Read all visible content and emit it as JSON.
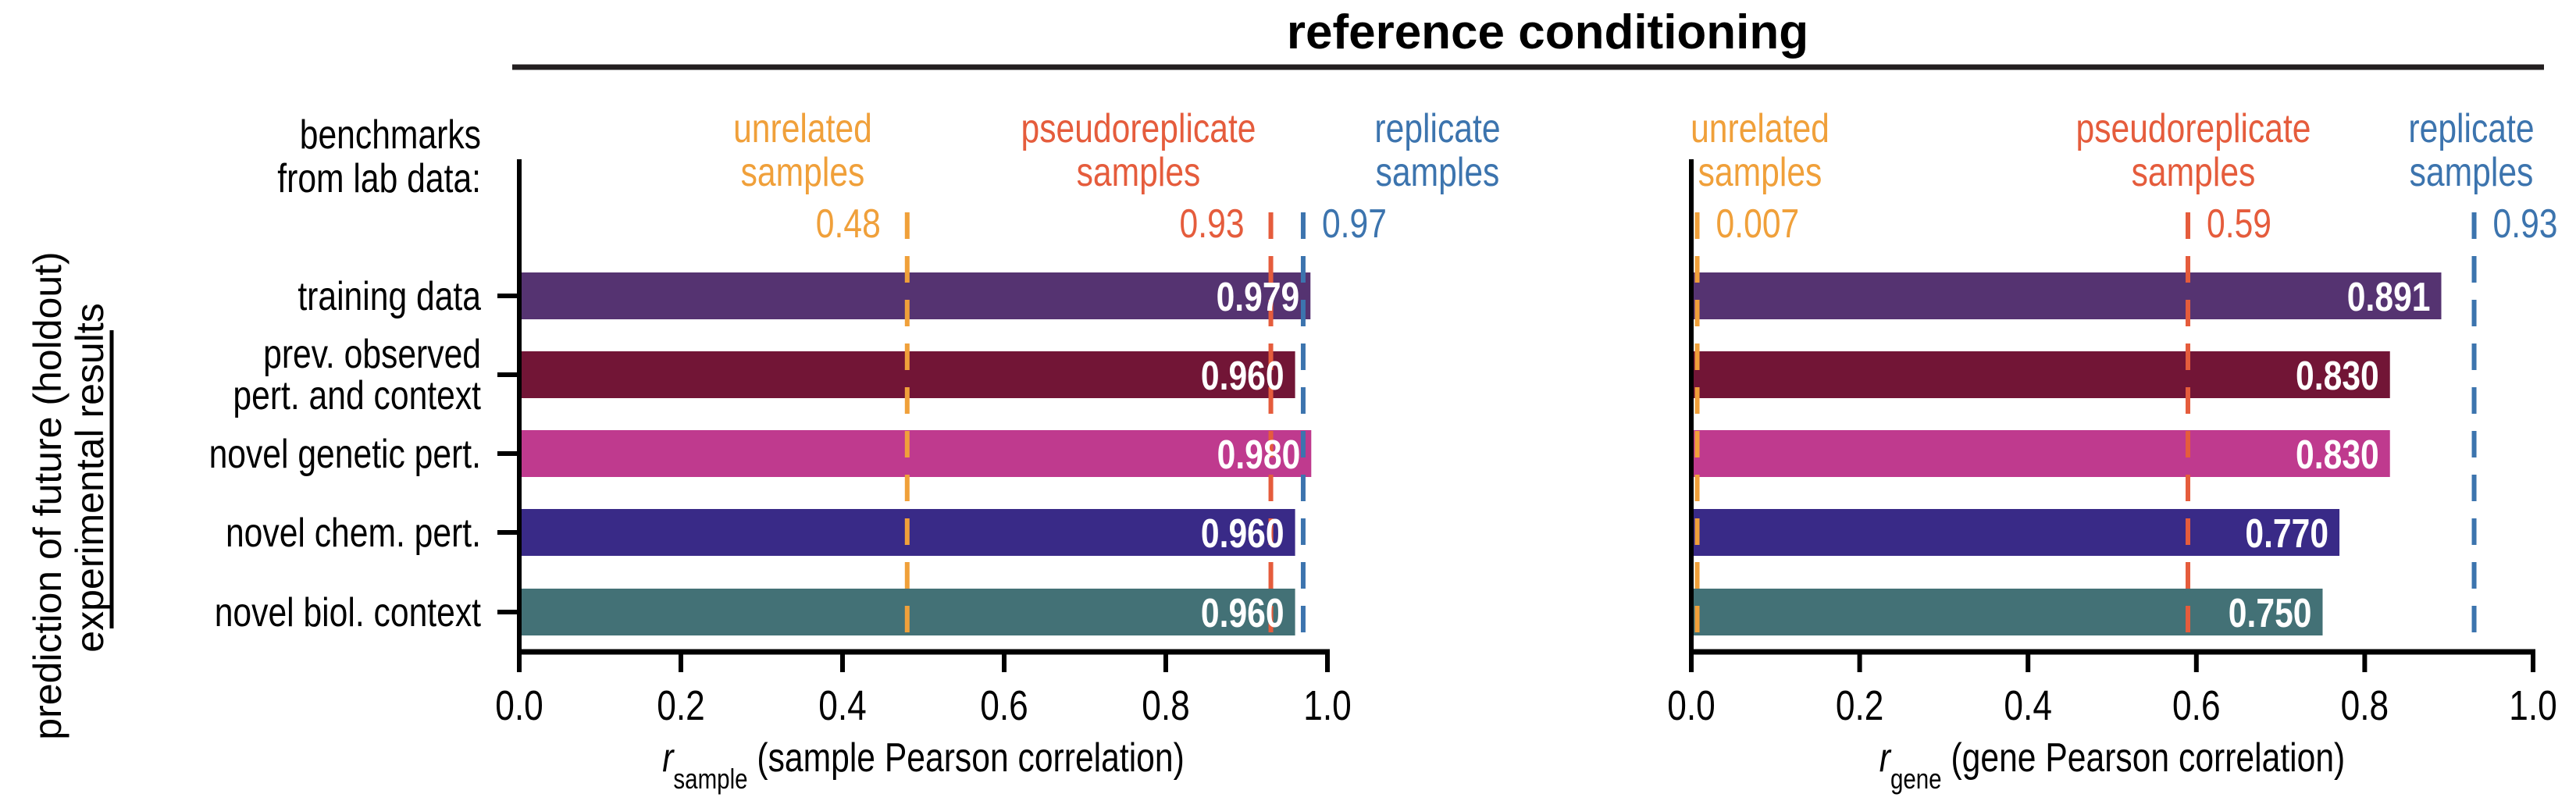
{
  "title": "reference conditioning",
  "benchmark_label": [
    "benchmarks",
    "from lab data:"
  ],
  "ylabel": [
    "prediction of future (holdout)",
    "experimental results"
  ],
  "categories": [
    "training data",
    "prev. observed|pert. and context",
    "novel genetic pert.",
    "novel chem. pert.",
    "novel biol. context"
  ],
  "bar_colors": [
    "#553371",
    "#721536",
    "#BF3A8E",
    "#392A87",
    "#437176"
  ],
  "chart_data": [
    {
      "type": "bar",
      "orientation": "horizontal",
      "xlabel_main": "r",
      "xlabel_sub": "sample",
      "xlabel_rest": "(sample Pearson correlation)",
      "xlim": [
        0,
        1
      ],
      "ticks": [
        "0.0",
        "0.2",
        "0.4",
        "0.6",
        "0.8",
        "1.0"
      ],
      "values": [
        0.979,
        0.96,
        0.98,
        0.96,
        0.96
      ],
      "value_labels": [
        "0.979",
        "0.960",
        "0.980",
        "0.960",
        "0.960"
      ],
      "benchmarks": [
        {
          "name": [
            "unrelated",
            "samples"
          ],
          "value": 0.48,
          "label": "0.48",
          "color": "#F0A03A"
        },
        {
          "name": [
            "pseudoreplicate",
            "samples"
          ],
          "value": 0.93,
          "label": "0.93",
          "color": "#E55C3C"
        },
        {
          "name": [
            "replicate",
            "samples"
          ],
          "value": 0.97,
          "label": "0.97",
          "color": "#3C74AE"
        }
      ]
    },
    {
      "type": "bar",
      "orientation": "horizontal",
      "xlabel_main": "r",
      "xlabel_sub": "gene",
      "xlabel_rest": "(gene Pearson correlation)",
      "xlim": [
        0,
        1
      ],
      "ticks": [
        "0.0",
        "0.2",
        "0.4",
        "0.6",
        "0.8",
        "1.0"
      ],
      "values": [
        0.891,
        0.83,
        0.83,
        0.77,
        0.75
      ],
      "value_labels": [
        "0.891",
        "0.830",
        "0.830",
        "0.770",
        "0.750"
      ],
      "benchmarks": [
        {
          "name": [
            "unrelated",
            "samples"
          ],
          "value": 0.007,
          "label": "0.007",
          "color": "#F0A03A"
        },
        {
          "name": [
            "pseudoreplicate",
            "samples"
          ],
          "value": 0.59,
          "label": "0.59",
          "color": "#E55C3C"
        },
        {
          "name": [
            "replicate",
            "samples"
          ],
          "value": 0.93,
          "label": "0.93",
          "color": "#3C74AE"
        }
      ]
    }
  ]
}
